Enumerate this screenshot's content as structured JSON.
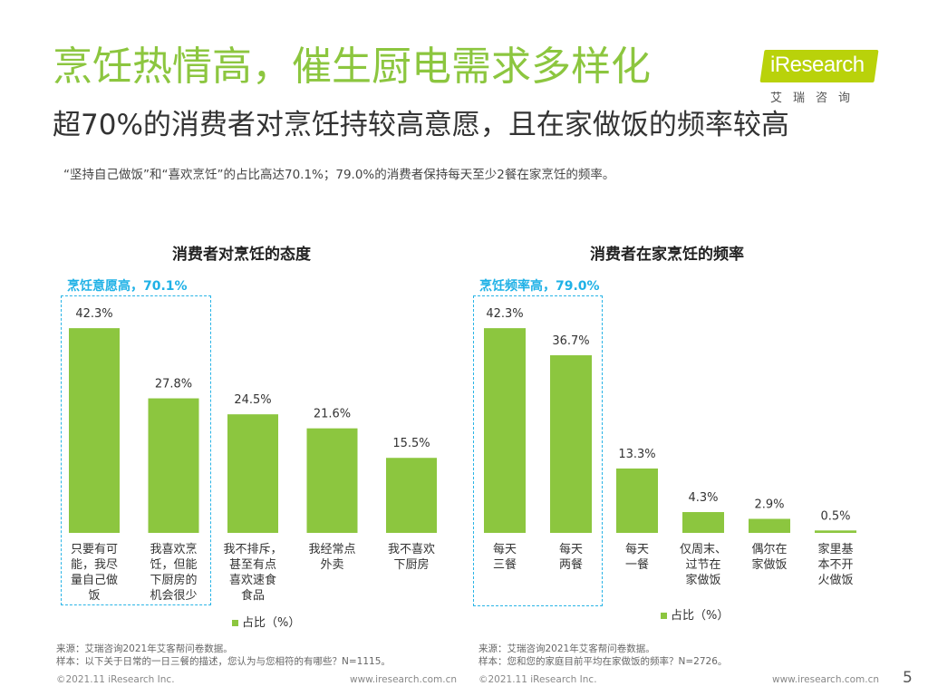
{
  "header": {
    "title": "烹饪热情高，催生厨电需求多样化",
    "subtitle": "超70%的消费者对烹饪持较高意愿，且在家做饭的频率较高",
    "note": "“坚持自己做饭”和“喜欢烹饪”的占比高达70.1%；79.0%的消费者保持每天至少2餐在家烹饪的频率。"
  },
  "logo": {
    "text": "iResearch",
    "cn": "艾瑞咨询",
    "color": "#b9d20a"
  },
  "bar_color": "#8cc63f",
  "highlight_color": "#29b4e6",
  "chart_data": [
    {
      "type": "bar",
      "title": "消费者对烹饪的态度",
      "highlight_label": "烹饪意愿高，70.1%",
      "legend": "占比（%）",
      "categories": [
        [
          "只要有可",
          "能，我尽",
          "量自己做",
          "饭"
        ],
        [
          "我喜欢烹",
          "饪，但能",
          "下厨房的",
          "机会很少"
        ],
        [
          "我不排斥，",
          "甚至有点",
          "喜欢速食",
          "食品"
        ],
        [
          "我经常点",
          "外卖"
        ],
        [
          "我不喜欢",
          "下厨房"
        ]
      ],
      "values": [
        42.3,
        27.8,
        24.5,
        21.6,
        15.5
      ],
      "value_labels": [
        "42.3%",
        "27.8%",
        "24.5%",
        "21.6%",
        "15.5%"
      ],
      "highlighted": [
        0,
        1
      ]
    },
    {
      "type": "bar",
      "title": "消费者在家烹饪的频率",
      "highlight_label": "烹饪频率高，79.0%",
      "legend": "占比（%）",
      "categories": [
        [
          "每天",
          "三餐"
        ],
        [
          "每天",
          "两餐"
        ],
        [
          "每天",
          "一餐"
        ],
        [
          "仅周末、",
          "过节在",
          "家做饭"
        ],
        [
          "偶尔在",
          "家做饭"
        ],
        [
          "家里基",
          "本不开",
          "火做饭"
        ]
      ],
      "values": [
        42.3,
        36.7,
        13.3,
        4.3,
        2.9,
        0.5
      ],
      "value_labels": [
        "42.3%",
        "36.7%",
        "13.3%",
        "4.3%",
        "2.9%",
        "0.5%"
      ],
      "highlighted": [
        0,
        1
      ]
    }
  ],
  "sources": {
    "left": [
      "来源：艾瑞咨询2021年艾客帮问卷数据。",
      "样本：以下关于日常的一日三餐的描述，您认为与您相符的有哪些？N=1115。"
    ],
    "right": [
      "来源：艾瑞咨询2021年艾客帮问卷数据。",
      "样本：您和您的家庭目前平均在家做饭的频率？N=2726。"
    ]
  },
  "footer": {
    "copyright": "©2021.11 iResearch Inc.",
    "website": "www.iresearch.com.cn",
    "page": "5"
  }
}
